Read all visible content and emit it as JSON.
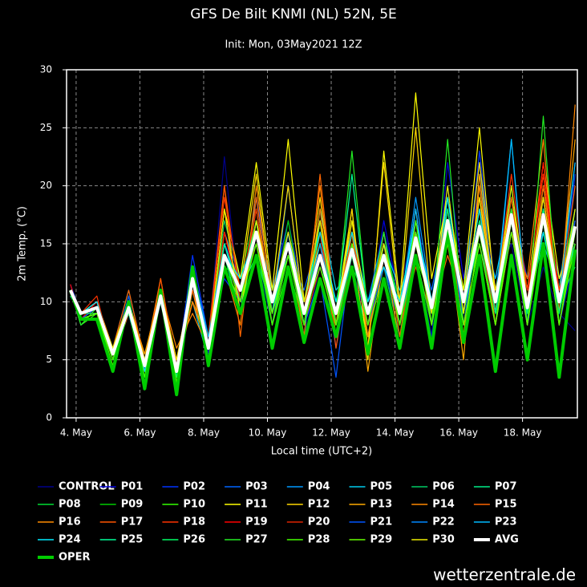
{
  "chart_data": {
    "type": "line",
    "title": "GFS De Bilt KNMI (NL) 52N, 5E",
    "subtitle": "Init: Mon, 03May2021 12Z",
    "y_label": "2m Temp. (°C)",
    "x_label": "Local time (UTC+2)",
    "watermark": "wetterzentrale.de",
    "grid": true,
    "xlim": [
      3.7,
      19.72
    ],
    "ylim": [
      0,
      30
    ],
    "yticks": [
      0,
      5,
      10,
      15,
      20,
      25,
      30
    ],
    "xticks": [
      {
        "value": 4,
        "label": "4. May"
      },
      {
        "value": 6,
        "label": "6. May"
      },
      {
        "value": 8,
        "label": "8. May"
      },
      {
        "value": 10,
        "label": "10. May"
      },
      {
        "value": 12,
        "label": "12. May"
      },
      {
        "value": 14,
        "label": "14. May"
      },
      {
        "value": 16,
        "label": "16. May"
      },
      {
        "value": 18,
        "label": "18. May"
      }
    ],
    "x": [
      3.82,
      4.15,
      4.65,
      5.15,
      5.65,
      6.15,
      6.65,
      7.15,
      7.65,
      8.15,
      8.65,
      9.15,
      9.65,
      10.15,
      10.65,
      11.15,
      11.65,
      12.15,
      12.65,
      13.15,
      13.65,
      14.15,
      14.65,
      15.15,
      15.65,
      16.15,
      16.65,
      17.15,
      17.65,
      18.15,
      18.65,
      19.15,
      19.65
    ],
    "series": [
      {
        "name": "CONTROL",
        "color": "#00008b",
        "values": [
          11,
          8.5,
          9,
          6,
          9,
          5,
          11,
          4.5,
          13,
          6.5,
          22.5,
          9,
          14,
          8,
          13,
          7,
          13,
          8,
          15,
          10,
          16,
          11,
          17,
          9,
          16,
          11,
          18,
          12,
          15,
          8,
          13,
          9,
          7.5
        ]
      },
      {
        "name": "P01",
        "color": "#0000dd",
        "values": [
          11,
          9,
          10,
          5,
          10,
          4,
          11,
          3.5,
          12,
          5.5,
          15,
          12,
          18,
          9,
          16,
          8,
          12,
          7,
          13,
          8,
          17,
          10,
          14,
          7,
          22,
          12,
          20,
          10,
          16,
          11,
          19,
          8,
          14
        ]
      },
      {
        "name": "P02",
        "color": "#0033ff",
        "values": [
          11.5,
          9,
          9.5,
          6,
          9.5,
          5,
          10,
          4,
          14,
          7,
          12,
          10,
          19,
          11,
          17,
          10,
          15,
          6,
          14,
          9,
          13,
          8,
          18,
          9,
          20,
          9,
          23,
          11,
          18,
          12,
          16,
          9,
          21
        ]
      },
      {
        "name": "P03",
        "color": "#0066ff",
        "values": [
          11,
          8,
          9,
          5.5,
          10.5,
          4,
          10,
          4.5,
          11,
          6,
          16,
          12,
          15,
          10,
          14,
          11,
          16,
          10,
          15,
          8,
          15,
          10,
          16,
          11,
          18,
          8,
          15,
          9,
          17,
          10,
          20,
          11,
          15
        ]
      },
      {
        "name": "P04",
        "color": "#0099ff",
        "values": [
          10.5,
          9,
          10,
          6,
          11,
          5,
          10,
          4,
          13,
          7,
          14,
          9,
          19,
          9,
          20,
          9,
          13,
          8,
          16,
          10,
          14,
          9,
          19,
          10,
          16,
          11,
          22,
          9,
          24,
          8,
          18,
          12,
          17
        ]
      },
      {
        "name": "P05",
        "color": "#00ccee",
        "values": [
          11,
          8.5,
          9.5,
          5,
          9,
          3.5,
          11,
          5,
          10,
          5,
          13,
          10,
          17,
          11,
          15,
          7,
          18,
          11,
          13,
          7,
          15,
          11,
          14,
          8,
          19,
          9,
          17,
          12,
          19,
          10,
          15,
          11,
          22
        ]
      },
      {
        "name": "P06",
        "color": "#00cc66",
        "values": [
          11,
          9,
          9,
          6,
          10,
          4.5,
          10.5,
          3.5,
          12,
          6,
          17,
          12,
          15,
          8,
          14,
          9,
          14,
          10,
          16,
          9,
          13,
          7,
          16,
          10,
          17,
          10,
          15,
          8,
          20,
          9,
          18,
          10,
          13
        ]
      },
      {
        "name": "P07",
        "color": "#00ee88",
        "values": [
          10.5,
          9,
          10,
          5.5,
          9.5,
          4,
          11,
          4,
          13,
          5,
          14,
          11,
          14,
          9,
          16,
          8,
          13,
          9,
          14,
          8,
          16,
          9,
          15,
          9,
          15,
          11,
          18,
          10,
          16,
          9,
          19,
          9,
          16
        ]
      },
      {
        "name": "P08",
        "color": "#00dd33",
        "values": [
          11,
          8.5,
          9,
          6,
          9,
          5,
          10,
          5,
          12,
          7,
          15,
          10,
          17,
          10,
          15,
          10,
          15,
          8,
          13,
          10,
          15,
          10,
          17,
          8,
          18,
          9,
          16,
          11,
          18,
          10,
          17,
          11,
          18
        ]
      },
      {
        "name": "P09",
        "color": "#00cc00",
        "values": [
          11,
          9,
          9.5,
          5,
          10,
          4,
          10,
          3,
          11,
          6,
          13,
          12,
          18,
          9,
          17,
          9,
          14,
          7,
          15,
          9,
          14,
          8,
          16,
          9,
          16,
          10,
          17,
          9,
          19,
          8,
          16,
          9,
          15
        ]
      },
      {
        "name": "P10",
        "color": "#33ff00",
        "values": [
          11,
          8,
          9,
          5.5,
          10,
          4.5,
          11,
          4,
          12,
          7,
          16,
          11,
          16,
          8,
          13,
          8,
          16,
          9,
          17,
          7,
          13,
          9,
          14,
          10,
          15,
          10,
          18,
          10,
          17,
          8,
          20,
          10,
          17
        ]
      },
      {
        "name": "P11",
        "color": "#ffff00",
        "values": [
          11,
          9,
          10,
          6,
          10,
          5,
          10,
          4.5,
          12,
          6,
          18,
          12,
          22,
          11,
          24,
          10,
          15,
          9,
          18,
          5,
          23,
          10,
          28,
          12,
          19,
          11,
          25,
          10,
          19,
          11,
          22,
          12,
          16
        ]
      },
      {
        "name": "P12",
        "color": "#ffd700",
        "values": [
          11,
          9,
          9.5,
          6,
          9,
          5,
          10.5,
          4,
          11,
          5,
          16,
          11,
          21,
          10,
          20,
          9,
          19,
          8,
          18,
          6,
          22,
          9,
          25,
          9,
          17,
          10,
          22,
          11,
          18,
          10,
          20,
          11,
          17
        ]
      },
      {
        "name": "P13",
        "color": "#ffaa00",
        "values": [
          11,
          8.5,
          9,
          5.5,
          10,
          5.5,
          11,
          5,
          10,
          6,
          14,
          10,
          18,
          9,
          16,
          8,
          17,
          7,
          16,
          4,
          14,
          9,
          18,
          8,
          16,
          5,
          21,
          9,
          16,
          10,
          19,
          10,
          24
        ]
      },
      {
        "name": "P14",
        "color": "#ff8800",
        "values": [
          11,
          9,
          10,
          6,
          10,
          5,
          11,
          6,
          9,
          6,
          13,
          8,
          20,
          10,
          16,
          9,
          20,
          8,
          17,
          7,
          15,
          6,
          17,
          10,
          18,
          9,
          19,
          8,
          16,
          12,
          24,
          9,
          27
        ]
      },
      {
        "name": "P15",
        "color": "#ff6600",
        "values": [
          11,
          9,
          9,
          6,
          11,
          5,
          10,
          5,
          10,
          7,
          20,
          7,
          19,
          9,
          15,
          7,
          21,
          8,
          16,
          8,
          16,
          7,
          15,
          9,
          14,
          10,
          18,
          8,
          17,
          11,
          21,
          10,
          20
        ]
      },
      {
        "name": "P16",
        "color": "#ff8c00",
        "values": [
          11,
          8.5,
          9.5,
          5,
          9,
          5,
          12,
          4,
          10,
          6,
          18,
          9,
          17,
          8,
          14,
          8,
          18,
          7,
          15,
          7,
          14,
          8,
          16,
          10,
          15,
          7,
          20,
          9,
          18,
          10,
          18,
          11,
          14
        ]
      },
      {
        "name": "P17",
        "color": "#ff5500",
        "values": [
          11,
          9,
          9.5,
          6,
          9.5,
          4,
          12,
          4.5,
          11,
          6,
          20,
          10,
          16,
          9,
          15,
          8,
          17,
          6,
          15,
          8,
          13,
          9,
          14,
          8,
          17,
          8,
          17,
          9,
          19,
          9,
          20,
          10,
          15
        ]
      },
      {
        "name": "P18",
        "color": "#ff3300",
        "values": [
          11,
          9,
          10.5,
          5,
          10,
          4.5,
          11,
          5,
          12,
          7,
          19,
          11,
          15,
          10,
          16,
          9,
          16,
          7,
          14,
          9,
          15,
          8,
          13,
          9,
          16,
          9,
          19,
          10,
          21,
          11,
          21,
          11,
          16
        ]
      },
      {
        "name": "P19",
        "color": "#ff0000",
        "values": [
          11.5,
          8.5,
          10,
          5.5,
          9,
          5,
          10,
          5,
          12,
          6,
          16,
          10,
          16,
          9,
          14,
          9,
          15,
          8,
          15,
          9,
          14,
          9,
          15,
          9,
          17,
          10,
          16,
          10,
          18,
          10,
          22,
          10,
          16
        ]
      },
      {
        "name": "P20",
        "color": "#dd2200",
        "values": [
          11,
          9,
          9,
          5,
          10,
          4,
          10.5,
          4.5,
          12,
          6,
          15,
          11,
          18,
          8,
          15,
          8,
          13,
          8,
          14,
          8,
          15,
          8,
          16,
          8,
          18,
          9,
          16,
          9,
          18,
          9,
          19,
          9,
          17
        ]
      },
      {
        "name": "P21",
        "color": "#0055ff",
        "values": [
          11,
          8.5,
          9.5,
          5,
          10,
          4,
          10,
          4,
          13,
          6,
          13,
          10,
          17,
          8,
          16,
          8,
          12,
          3.5,
          15,
          8,
          13,
          9,
          16,
          9,
          18,
          8,
          17,
          9,
          16,
          8,
          18,
          9,
          17
        ]
      },
      {
        "name": "P22",
        "color": "#0088ff",
        "values": [
          11,
          9,
          9.5,
          6,
          9.5,
          4.5,
          11,
          4,
          12,
          6,
          15,
          11,
          16,
          10,
          16,
          9,
          14,
          8,
          14,
          10,
          16,
          8,
          15,
          10,
          17,
          9,
          17,
          9,
          17,
          9,
          17,
          10,
          18
        ]
      },
      {
        "name": "P23",
        "color": "#00bbff",
        "values": [
          11,
          8.5,
          9,
          5.5,
          10,
          4.5,
          10,
          4,
          12,
          7,
          15,
          10,
          17,
          9,
          16,
          9,
          15,
          9,
          15,
          9,
          14,
          9,
          18,
          8,
          16,
          10,
          16,
          10,
          24,
          9,
          18,
          10,
          22
        ]
      },
      {
        "name": "P24",
        "color": "#00eeff",
        "values": [
          11,
          9,
          10,
          5.5,
          9.5,
          4,
          10.5,
          4,
          13,
          6,
          14,
          12,
          16,
          10,
          14,
          10,
          16,
          10,
          16,
          10,
          13,
          10,
          17,
          10,
          19,
          10,
          18,
          9,
          17,
          9,
          16,
          10,
          15
        ]
      },
      {
        "name": "P25",
        "color": "#00ff99",
        "values": [
          11,
          8.5,
          9,
          5,
          9.5,
          5,
          10.5,
          4,
          12,
          6,
          15,
          11,
          17,
          9,
          14,
          9,
          14,
          9,
          21,
          9,
          15,
          9,
          15,
          9,
          17,
          9,
          16,
          10,
          18,
          8,
          17,
          9,
          18
        ]
      },
      {
        "name": "P26",
        "color": "#00ff66",
        "values": [
          11,
          9,
          9,
          6,
          9,
          4.5,
          10,
          3.5,
          12,
          6,
          14,
          9,
          16,
          9,
          15,
          8,
          17,
          8,
          14,
          8,
          15,
          8,
          16,
          9,
          18,
          9,
          17,
          9,
          17,
          9,
          18,
          9,
          16
        ]
      },
      {
        "name": "P27",
        "color": "#22ee22",
        "values": [
          11,
          8,
          9.5,
          5,
          10,
          3,
          11,
          3,
          13,
          5,
          13,
          10,
          15,
          8,
          14,
          8,
          14,
          9,
          23,
          9,
          16,
          8,
          14,
          8,
          24,
          8,
          15,
          8,
          18,
          8,
          26,
          8,
          16
        ]
      },
      {
        "name": "P28",
        "color": "#44ff00",
        "values": [
          11,
          8.5,
          9,
          5,
          10,
          3.5,
          11,
          3,
          12,
          5,
          14,
          10,
          17,
          8,
          15,
          8,
          14,
          8,
          15,
          8,
          14,
          8,
          17,
          8,
          17,
          7,
          16,
          8,
          17,
          8,
          17,
          8,
          15
        ]
      },
      {
        "name": "P29",
        "color": "#66ff00",
        "values": [
          11,
          8.5,
          9,
          4.5,
          9.5,
          3,
          11,
          3,
          12,
          5,
          13,
          10,
          15,
          9,
          14,
          9,
          13,
          8,
          15,
          8,
          14,
          8,
          16,
          8,
          15,
          8,
          15,
          8,
          16,
          8,
          17,
          8,
          16
        ]
      },
      {
        "name": "P30",
        "color": "#eeee00",
        "values": [
          11,
          9,
          9.5,
          6,
          10,
          5,
          11,
          5,
          12,
          6,
          18,
          9,
          17,
          10,
          16,
          10,
          17,
          9,
          17,
          9,
          15,
          9,
          15,
          9,
          20,
          9,
          19,
          10,
          20,
          10,
          19,
          10,
          18
        ]
      },
      {
        "name": "AVG",
        "color": "#ffffff",
        "width": 4,
        "values": [
          11,
          9,
          9.5,
          5.5,
          9.5,
          4.5,
          10.5,
          4,
          12,
          6,
          14,
          11,
          16,
          10,
          15,
          9,
          14,
          9,
          14.5,
          9,
          14,
          9,
          15.5,
          9.5,
          17,
          10,
          16.5,
          10,
          17.5,
          9.5,
          17.5,
          10,
          16.5
        ]
      },
      {
        "name": "OPER",
        "color": "#00cc00",
        "width": 4,
        "values": [
          11,
          8.5,
          8.5,
          4,
          10,
          2.5,
          11,
          2,
          13,
          4.5,
          13,
          9,
          14,
          6,
          13,
          6.5,
          12,
          7,
          13,
          5.5,
          12,
          6,
          14,
          6,
          16,
          6.5,
          14,
          4,
          14,
          5,
          15,
          3.5,
          14.5
        ]
      }
    ]
  }
}
